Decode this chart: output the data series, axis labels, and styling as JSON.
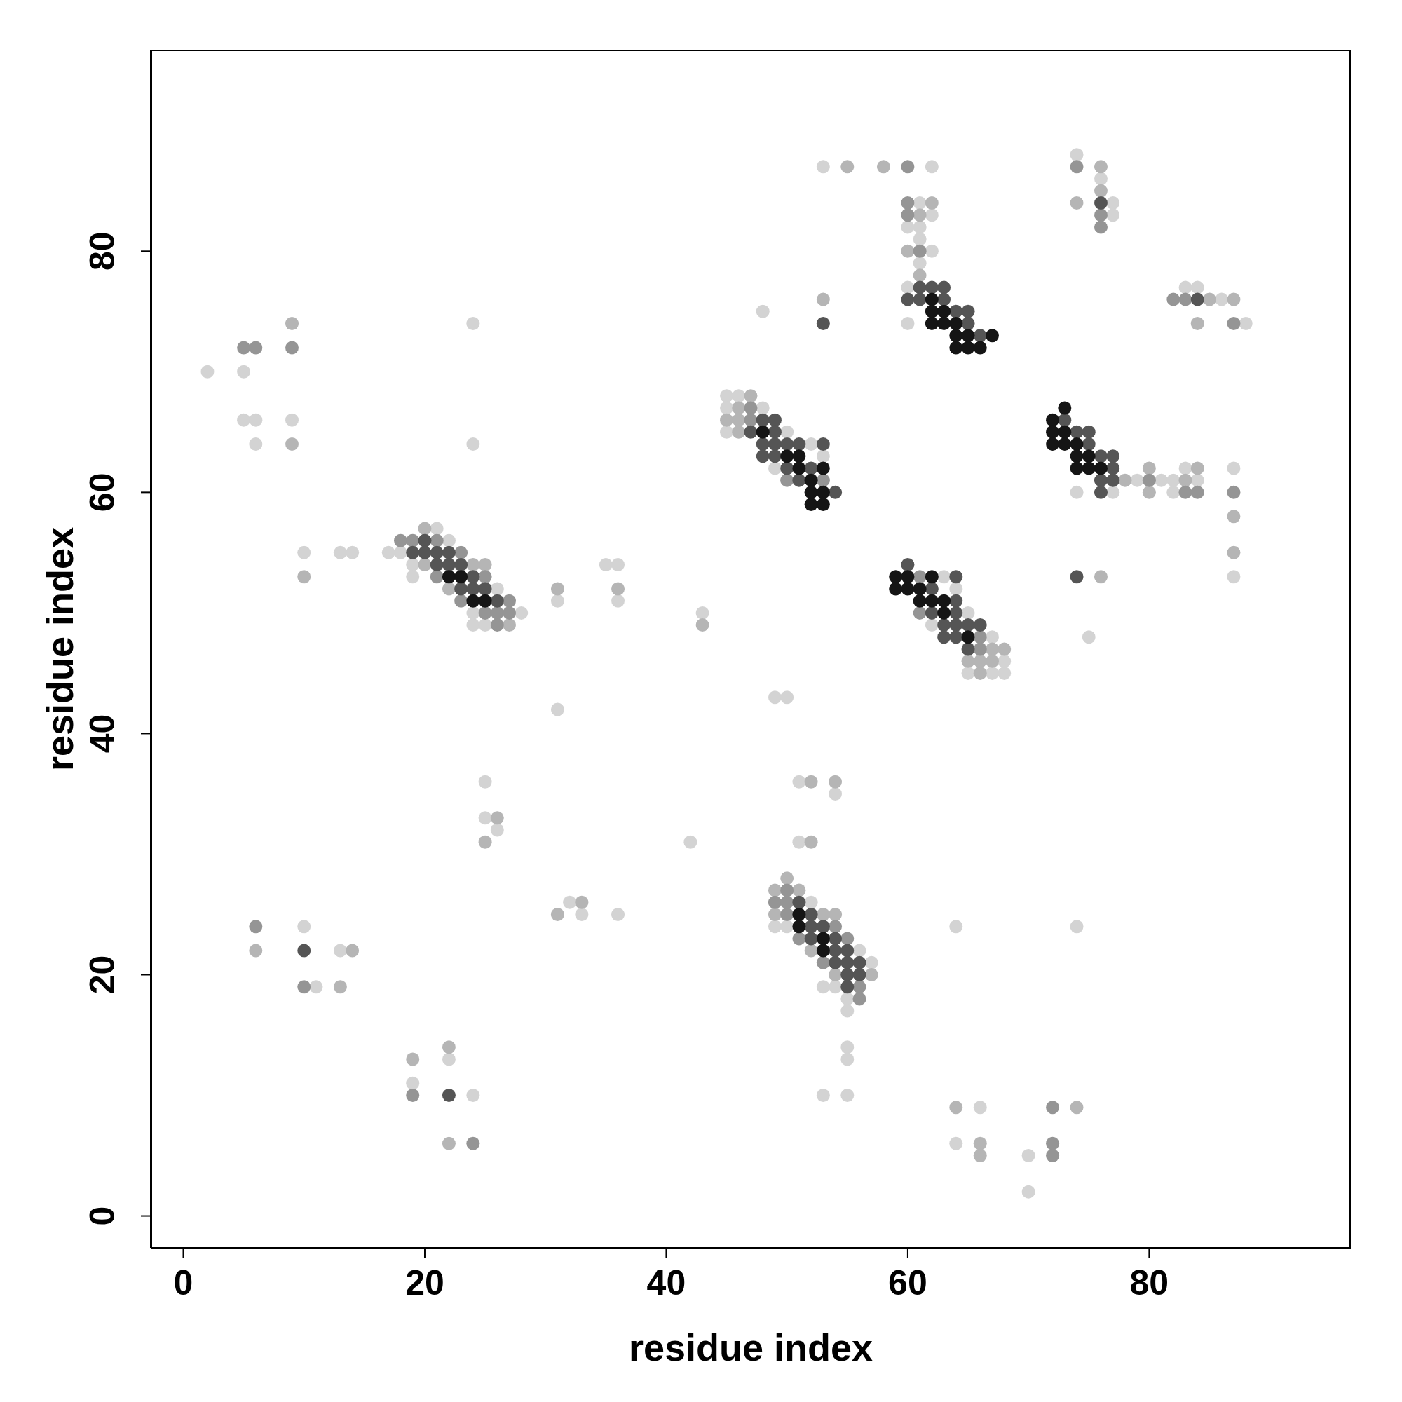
{
  "chart_data": {
    "type": "scatter",
    "xlabel": "residue index",
    "ylabel": "residue index",
    "xlim": [
      -2.7,
      96.7
    ],
    "ylim": [
      -2.7,
      96.7
    ],
    "xticks": [
      0,
      20,
      40,
      60,
      80
    ],
    "yticks": [
      0,
      20,
      40,
      60,
      80
    ],
    "marker": "circle",
    "series": [
      {
        "color": "#d3d3d3",
        "x": [
          53,
          62,
          61,
          62,
          60,
          61,
          61,
          62,
          61,
          60,
          48,
          60,
          45,
          46,
          45,
          48,
          45,
          50,
          52,
          53,
          49,
          74,
          76,
          77,
          77,
          83,
          84,
          86,
          88,
          83,
          87,
          79,
          81,
          82,
          84,
          74,
          77,
          82,
          87,
          75,
          2,
          5,
          5,
          6,
          9,
          6,
          24,
          24,
          21,
          22,
          10,
          13,
          14,
          17,
          18,
          19,
          35,
          36,
          19,
          26,
          31,
          36,
          24,
          28,
          24,
          25,
          31,
          63,
          64,
          65,
          62,
          67,
          68,
          65,
          67,
          68,
          43,
          49,
          50,
          51,
          54,
          42,
          51,
          52,
          49,
          50,
          56,
          57,
          53,
          54,
          55,
          55,
          55,
          55,
          53,
          55,
          64,
          74,
          25,
          25,
          26,
          32,
          33,
          36,
          10,
          13,
          11,
          22,
          19,
          24,
          66,
          64,
          70,
          70
        ],
        "values": [
          87,
          87,
          84,
          83,
          82,
          82,
          81,
          80,
          79,
          77,
          75,
          74,
          68,
          68,
          67,
          67,
          65,
          65,
          64,
          63,
          62,
          88,
          86,
          84,
          83,
          77,
          77,
          76,
          74,
          62,
          62,
          61,
          61,
          61,
          61,
          60,
          60,
          60,
          53,
          48,
          70,
          70,
          66,
          66,
          66,
          64,
          64,
          74,
          57,
          56,
          55,
          55,
          55,
          55,
          55,
          54,
          54,
          54,
          53,
          52,
          51,
          51,
          50,
          50,
          49,
          49,
          42,
          53,
          52,
          50,
          49,
          48,
          46,
          45,
          45,
          45,
          50,
          43,
          43,
          36,
          35,
          31,
          31,
          26,
          24,
          24,
          22,
          21,
          19,
          19,
          18,
          17,
          14,
          13,
          10,
          10,
          24,
          24,
          36,
          33,
          32,
          26,
          25,
          25,
          24,
          22,
          19,
          13,
          11,
          10,
          9,
          6,
          5,
          2
        ]
      },
      {
        "color": "#b5b5b5",
        "x": [
          55,
          58,
          62,
          61,
          60,
          61,
          53,
          47,
          46,
          45,
          46,
          46,
          74,
          76,
          76,
          85,
          87,
          84,
          80,
          84,
          78,
          83,
          80,
          87,
          87,
          76,
          9,
          9,
          20,
          20,
          24,
          25,
          10,
          22,
          31,
          36,
          27,
          66,
          67,
          68,
          65,
          66,
          67,
          43,
          52,
          54,
          52,
          50,
          49,
          51,
          49,
          53,
          54,
          52,
          54,
          57,
          26,
          25,
          33,
          31,
          6,
          14,
          13,
          22,
          19,
          22,
          64,
          74,
          66,
          66
        ],
        "values": [
          87,
          87,
          84,
          83,
          80,
          78,
          76,
          68,
          67,
          66,
          66,
          65,
          84,
          87,
          85,
          76,
          76,
          74,
          62,
          62,
          61,
          61,
          60,
          58,
          55,
          53,
          74,
          64,
          57,
          54,
          54,
          54,
          53,
          52,
          52,
          52,
          49,
          45,
          47,
          47,
          46,
          46,
          46,
          49,
          36,
          36,
          31,
          28,
          27,
          27,
          25,
          25,
          25,
          22,
          20,
          20,
          33,
          31,
          26,
          25,
          22,
          22,
          19,
          14,
          13,
          6,
          9,
          9,
          6,
          5
        ]
      },
      {
        "color": "#959595",
        "x": [
          60,
          60,
          60,
          61,
          76,
          76,
          74,
          87,
          47,
          47,
          50,
          53,
          82,
          83,
          80,
          83,
          84,
          87,
          5,
          6,
          9,
          18,
          19,
          21,
          23,
          21,
          25,
          23,
          27,
          25,
          26,
          27,
          26,
          61,
          61,
          66,
          66,
          49,
          50,
          50,
          50,
          54,
          51,
          55,
          53,
          56,
          56,
          6,
          10,
          19,
          24,
          72,
          72,
          72
        ],
        "values": [
          87,
          84,
          83,
          80,
          83,
          82,
          87,
          74,
          67,
          66,
          61,
          61,
          76,
          76,
          61,
          60,
          60,
          60,
          72,
          72,
          72,
          56,
          56,
          56,
          55,
          53,
          53,
          51,
          51,
          50,
          50,
          50,
          49,
          53,
          50,
          48,
          47,
          26,
          26,
          27,
          25,
          24,
          23,
          23,
          21,
          19,
          18,
          24,
          19,
          10,
          6,
          9,
          6,
          5
        ]
      },
      {
        "color": "#555555",
        "x": [
          61,
          62,
          63,
          60,
          61,
          63,
          64,
          65,
          53,
          65,
          66,
          48,
          49,
          47,
          49,
          48,
          49,
          50,
          51,
          53,
          48,
          49,
          50,
          52,
          51,
          54,
          76,
          84,
          73,
          74,
          75,
          75,
          76,
          77,
          77,
          76,
          77,
          76,
          74,
          20,
          19,
          20,
          21,
          22,
          21,
          22,
          23,
          24,
          23,
          24,
          25,
          26,
          60,
          64,
          62,
          64,
          62,
          64,
          63,
          64,
          65,
          66,
          63,
          64,
          65,
          51,
          52,
          52,
          53,
          52,
          54,
          54,
          55,
          54,
          55,
          56,
          55,
          56,
          55,
          10,
          22
        ],
        "values": [
          77,
          77,
          77,
          76,
          76,
          76,
          75,
          75,
          74,
          74,
          73,
          66,
          66,
          65,
          65,
          64,
          64,
          64,
          64,
          64,
          63,
          63,
          62,
          62,
          61,
          60,
          84,
          76,
          66,
          65,
          65,
          64,
          63,
          63,
          62,
          61,
          61,
          60,
          53,
          56,
          55,
          55,
          55,
          55,
          54,
          54,
          54,
          53,
          52,
          52,
          52,
          51,
          54,
          53,
          52,
          51,
          50,
          50,
          49,
          49,
          49,
          49,
          48,
          48,
          47,
          26,
          25,
          24,
          24,
          23,
          23,
          22,
          22,
          21,
          21,
          21,
          20,
          20,
          19,
          22,
          10
        ]
      },
      {
        "color": "#151515",
        "x": [
          62,
          62,
          63,
          62,
          63,
          64,
          64,
          65,
          67,
          64,
          65,
          66,
          48,
          50,
          51,
          51,
          53,
          52,
          52,
          53,
          52,
          53,
          73,
          72,
          72,
          73,
          72,
          73,
          74,
          74,
          75,
          74,
          75,
          76,
          22,
          23,
          24,
          25,
          59,
          60,
          62,
          59,
          60,
          61,
          61,
          62,
          63,
          63,
          65,
          51,
          51,
          53,
          53
        ],
        "values": [
          76,
          75,
          75,
          74,
          74,
          74,
          73,
          73,
          73,
          72,
          72,
          72,
          65,
          63,
          63,
          62,
          62,
          61,
          60,
          60,
          59,
          59,
          67,
          66,
          65,
          65,
          64,
          64,
          64,
          63,
          63,
          62,
          62,
          62,
          53,
          53,
          51,
          51,
          53,
          53,
          53,
          52,
          52,
          52,
          51,
          51,
          51,
          50,
          48,
          25,
          24,
          23,
          22
        ]
      }
    ]
  }
}
